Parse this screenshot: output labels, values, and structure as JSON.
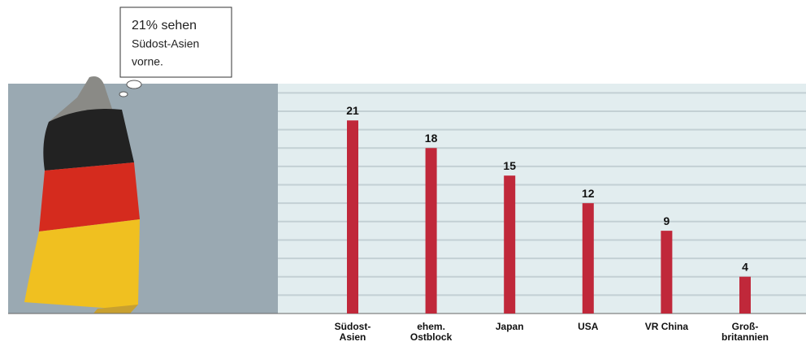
{
  "chart_data": {
    "type": "bar",
    "annotation": [
      "21% sehen",
      "Südost-Asien",
      "vorne."
    ],
    "categories": [
      "Südost-\nAsien",
      "ehem.\nOstblock",
      "Japan",
      "USA",
      "VR China",
      "Groß-\nbritannien"
    ],
    "values": [
      21,
      18,
      15,
      12,
      9,
      4
    ],
    "color": "#c0283a",
    "ylim": [
      0,
      25
    ],
    "yticks": [
      2,
      4,
      6,
      8,
      10,
      12,
      14,
      16,
      18,
      20,
      22,
      24
    ],
    "grid": true
  }
}
